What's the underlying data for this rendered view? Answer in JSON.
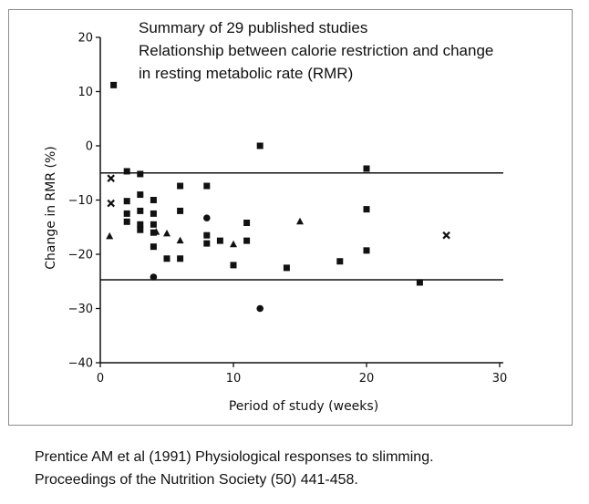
{
  "annotation": {
    "line1": "Summary of 29 published studies",
    "line2": "Relationship between calorie restriction and change",
    "line3": "in resting metabolic rate (RMR)"
  },
  "citation": {
    "line1": "Prentice AM et al (1991) Physiological responses to slimming.",
    "line2": "Proceedings of the Nutrition Society (50) 441-458."
  },
  "chart_data": {
    "type": "scatter",
    "xlabel": "Period of study (weeks)",
    "ylabel": "Change in RMR (%)",
    "xlim": [
      0,
      30
    ],
    "ylim": [
      -40,
      20
    ],
    "x_ticks": [
      0,
      10,
      20,
      30
    ],
    "y_ticks": [
      20,
      10,
      0,
      -10,
      -20,
      -30,
      -40
    ],
    "grid": false,
    "reference_lines_y": [
      -5,
      -24.7
    ],
    "series": [
      {
        "marker": "square",
        "points": [
          [
            1,
            11.2
          ],
          [
            2,
            -4.7
          ],
          [
            2,
            -10.2
          ],
          [
            2,
            -12.5
          ],
          [
            2,
            -14.0
          ],
          [
            3,
            -5.2
          ],
          [
            3,
            -9.0
          ],
          [
            3,
            -12.0
          ],
          [
            3,
            -14.5
          ],
          [
            3,
            -15.5
          ],
          [
            4,
            -10.0
          ],
          [
            4,
            -12.5
          ],
          [
            4,
            -14.5
          ],
          [
            4,
            -16.0
          ],
          [
            4,
            -18.6
          ],
          [
            5,
            -20.8
          ],
          [
            6,
            -7.4
          ],
          [
            6,
            -12.0
          ],
          [
            6,
            -20.8
          ],
          [
            8,
            -7.4
          ],
          [
            8,
            -16.5
          ],
          [
            8,
            -18.0
          ],
          [
            9,
            -17.5
          ],
          [
            10,
            -22.0
          ],
          [
            11,
            -14.2
          ],
          [
            11,
            -17.5
          ],
          [
            12,
            0
          ],
          [
            14,
            -22.5
          ],
          [
            18,
            -21.3
          ],
          [
            20,
            -4.2
          ],
          [
            20,
            -11.7
          ],
          [
            20,
            -19.3
          ],
          [
            24,
            -25.2
          ]
        ]
      },
      {
        "marker": "circle",
        "points": [
          [
            4,
            -24.2
          ],
          [
            8,
            -13.3
          ],
          [
            12,
            -30.0
          ]
        ]
      },
      {
        "marker": "triangle",
        "points": [
          [
            0.7,
            -16.7
          ],
          [
            4.2,
            -15.9
          ],
          [
            5,
            -16.2
          ],
          [
            6,
            -17.5
          ],
          [
            10,
            -18.2
          ],
          [
            15,
            -14.0
          ]
        ]
      },
      {
        "marker": "cross",
        "points": [
          [
            0.8,
            -6.0
          ],
          [
            0.8,
            -10.6
          ],
          [
            26,
            -16.5
          ]
        ]
      }
    ]
  }
}
